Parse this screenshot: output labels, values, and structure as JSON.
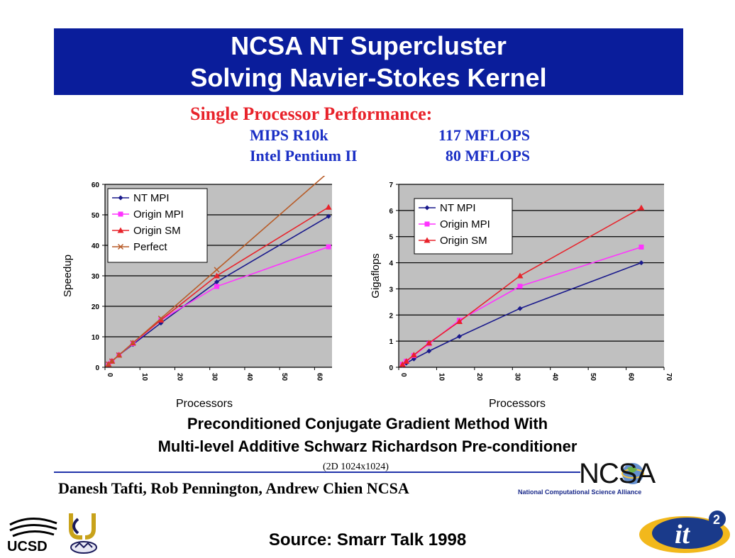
{
  "banner": {
    "line1": "NCSA NT Supercluster",
    "line2": "Solving Navier-Stokes Kernel"
  },
  "single_proc": {
    "title": "Single Processor Performance:",
    "rows": [
      {
        "name": "MIPS R10k",
        "value": "117 MFLOPS"
      },
      {
        "name": "Intel Pentium II",
        "value": "80 MFLOPS"
      }
    ]
  },
  "method": {
    "line1": "Preconditioned Conjugate Gradient Method With",
    "line2": "Multi-level Additive Schwarz Richardson Pre-conditioner",
    "grid": "(2D 1024x1024)"
  },
  "authors": "Danesh Tafti, Rob Pennington, Andrew Chien NCSA",
  "ncsa": {
    "logo_text": "NCSA",
    "subtitle": "National Computational Science Alliance"
  },
  "source": "Source: Smarr Talk 1998",
  "logos": {
    "ucsd": "UCSD",
    "uc": "uc-seal-icon",
    "it2": "it2-logo-icon"
  },
  "colors": {
    "banner": "#0a1d9b",
    "plot_bg": "#c0c0c0",
    "nt_mpi": "#1a1a8c",
    "origin_mpi": "#ff33ff",
    "origin_sm": "#e8232b",
    "perfect": "#b85c28"
  },
  "chart_data": [
    {
      "type": "line",
      "title": "",
      "xlabel": "Processors",
      "ylabel": "Speedup",
      "xlim": [
        0,
        65
      ],
      "ylim": [
        0,
        60
      ],
      "xticks": [
        0,
        10,
        20,
        30,
        40,
        50,
        60
      ],
      "yticks": [
        0,
        10,
        20,
        30,
        40,
        50,
        60
      ],
      "grid": true,
      "legend": "top-left",
      "series": [
        {
          "name": "NT MPI",
          "marker": "diamond",
          "color": "#1a1a8c",
          "points": [
            [
              1,
              1
            ],
            [
              2,
              2
            ],
            [
              4,
              4
            ],
            [
              8,
              7.5
            ],
            [
              16,
              14.5
            ],
            [
              32,
              28
            ],
            [
              64,
              49.5
            ]
          ]
        },
        {
          "name": "Origin MPI",
          "marker": "square",
          "color": "#ff33ff",
          "points": [
            [
              1,
              1
            ],
            [
              2,
              2
            ],
            [
              4,
              4
            ],
            [
              8,
              7.8
            ],
            [
              16,
              15.5
            ],
            [
              32,
              26.5
            ],
            [
              64,
              39.5
            ]
          ]
        },
        {
          "name": "Origin SM",
          "marker": "triangle",
          "color": "#e8232b",
          "points": [
            [
              1,
              1
            ],
            [
              2,
              2
            ],
            [
              4,
              4
            ],
            [
              8,
              8
            ],
            [
              16,
              15.5
            ],
            [
              32,
              30
            ],
            [
              64,
              52.5
            ]
          ]
        },
        {
          "name": "Perfect",
          "marker": "x",
          "color": "#b85c28",
          "points": [
            [
              1,
              1
            ],
            [
              2,
              2
            ],
            [
              4,
              4
            ],
            [
              8,
              8
            ],
            [
              16,
              16
            ],
            [
              32,
              32
            ],
            [
              64,
              64
            ]
          ]
        }
      ]
    },
    {
      "type": "line",
      "title": "",
      "xlabel": "Processors",
      "ylabel": "Gigaflops",
      "xlim": [
        0,
        70
      ],
      "ylim": [
        0,
        7
      ],
      "xticks": [
        0,
        10,
        20,
        30,
        40,
        50,
        60,
        70
      ],
      "yticks": [
        0,
        1,
        2,
        3,
        4,
        5,
        6,
        7
      ],
      "grid": true,
      "legend": "top-left",
      "series": [
        {
          "name": "NT MPI",
          "marker": "diamond",
          "color": "#1a1a8c",
          "points": [
            [
              1,
              0.08
            ],
            [
              2,
              0.16
            ],
            [
              4,
              0.32
            ],
            [
              8,
              0.62
            ],
            [
              16,
              1.18
            ],
            [
              32,
              2.25
            ],
            [
              64,
              4.0
            ]
          ]
        },
        {
          "name": "Origin MPI",
          "marker": "square",
          "color": "#ff33ff",
          "points": [
            [
              1,
              0.11
            ],
            [
              2,
              0.23
            ],
            [
              4,
              0.45
            ],
            [
              8,
              0.9
            ],
            [
              16,
              1.8
            ],
            [
              32,
              3.1
            ],
            [
              64,
              4.6
            ]
          ]
        },
        {
          "name": "Origin SM",
          "marker": "triangle",
          "color": "#e8232b",
          "points": [
            [
              1,
              0.11
            ],
            [
              2,
              0.23
            ],
            [
              4,
              0.47
            ],
            [
              8,
              0.93
            ],
            [
              16,
              1.75
            ],
            [
              32,
              3.5
            ],
            [
              64,
              6.1
            ]
          ]
        }
      ]
    }
  ]
}
